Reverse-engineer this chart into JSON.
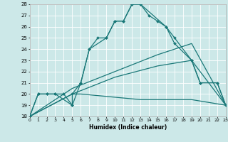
{
  "xlabel": "Humidex (Indice chaleur)",
  "xlim": [
    0,
    23
  ],
  "ylim": [
    18,
    28
  ],
  "xtick_labels": [
    "0",
    "1",
    "2",
    "3",
    "4",
    "5",
    "6",
    "7",
    "8",
    "9",
    "10",
    "11",
    "12",
    "13",
    "14",
    "15",
    "16",
    "17",
    "18",
    "19",
    "20",
    "21",
    "22",
    "23"
  ],
  "xtick_vals": [
    0,
    1,
    2,
    3,
    4,
    5,
    6,
    7,
    8,
    9,
    10,
    11,
    12,
    13,
    14,
    15,
    16,
    17,
    18,
    19,
    20,
    21,
    22,
    23
  ],
  "ytick_vals": [
    18,
    19,
    20,
    21,
    22,
    23,
    24,
    25,
    26,
    27,
    28
  ],
  "bg_color": "#cce8e8",
  "grid_color": "#ffffff",
  "line_color": "#1a7878",
  "series": [
    {
      "x": [
        0,
        1,
        2,
        3,
        4,
        5,
        6,
        7,
        8,
        9,
        10,
        11,
        12,
        13,
        14,
        15,
        16,
        17,
        19,
        20,
        22,
        23
      ],
      "y": [
        18,
        20,
        20,
        20,
        20,
        19,
        21,
        24,
        25,
        25,
        26.5,
        26.5,
        28,
        28,
        27,
        26.5,
        26,
        25,
        23,
        21,
        21,
        19
      ],
      "marker": "D",
      "ms": 2.0
    },
    {
      "x": [
        0,
        1,
        2,
        3,
        5,
        5,
        6,
        7,
        9,
        10,
        11,
        12,
        13,
        16,
        17,
        19,
        20,
        22,
        23
      ],
      "y": [
        18,
        20,
        20,
        20,
        19,
        20,
        21,
        24,
        25,
        26.5,
        26.5,
        28,
        28,
        26,
        24.5,
        23,
        21,
        21,
        19
      ],
      "marker": "D",
      "ms": 2.0
    },
    {
      "x": [
        0,
        5,
        10,
        15,
        19,
        23
      ],
      "y": [
        18,
        20.5,
        22,
        23.5,
        24.5,
        19
      ],
      "marker": null,
      "ms": 0
    },
    {
      "x": [
        0,
        5,
        10,
        15,
        19,
        23
      ],
      "y": [
        18,
        20,
        21.5,
        22.5,
        23,
        19
      ],
      "marker": null,
      "ms": 0
    },
    {
      "x": [
        0,
        5,
        6,
        13,
        19,
        23
      ],
      "y": [
        18,
        20,
        20,
        19.5,
        19.5,
        19
      ],
      "marker": null,
      "ms": 0
    }
  ]
}
